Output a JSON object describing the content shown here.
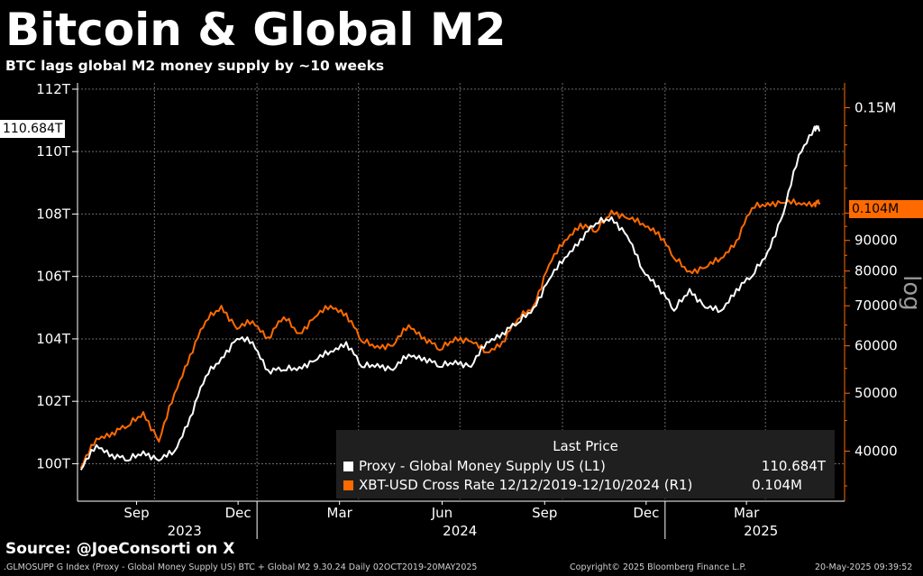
{
  "header": {
    "title": "Bitcoin & Global M2",
    "subtitle": "BTC lags global M2 money supply by ~10 weeks"
  },
  "source": "Source: @JoeConsorti on X",
  "footer": {
    "left": ".GLMOSUPP G Index (Proxy - Global Money Supply US) BTC + Global M2 9.30.24  Daily 02OCT2019-20MAY2025",
    "center": "Copyright© 2025 Bloomberg Finance L.P.",
    "right": "20-May-2025 09:39:52"
  },
  "legend": {
    "title": "Last Price",
    "series": [
      {
        "name": "Proxy - Global Money Supply US  (L1)",
        "value": "110.684T",
        "color": "#ffffff"
      },
      {
        "name": "XBT-USD Cross Rate 12/12/2019-12/10/2024  (R1)",
        "value": "0.104M",
        "color": "#ff6a00"
      }
    ]
  },
  "last_tags": {
    "left": "110.684T",
    "right": "0.104M"
  },
  "chart_data": {
    "type": "line",
    "log_scale_right": true,
    "right_axis_label": "log",
    "grid": true,
    "x_labels": [
      "Sep",
      "Dec",
      "Mar",
      "Jun",
      "Sep",
      "Dec",
      "Mar"
    ],
    "x_years": [
      "2023",
      "2024",
      "2025"
    ],
    "left_axis": {
      "ticks": [
        "100T",
        "102T",
        "104T",
        "106T",
        "108T",
        "110T",
        "112T"
      ],
      "ylim": [
        98.8,
        112.2
      ]
    },
    "right_axis": {
      "ticks": [
        "40000",
        "50000",
        "60000",
        "70000",
        "80000",
        "90000",
        "0.1M",
        "0.15M"
      ],
      "ylim": [
        33000,
        165000
      ]
    },
    "series": [
      {
        "name": "Proxy - Global Money Supply US",
        "axis": "left",
        "color": "#ffffff",
        "x": [
          "2023-07-27",
          "2023-08-10",
          "2023-08-24",
          "2023-09-07",
          "2023-09-21",
          "2023-10-05",
          "2023-10-19",
          "2023-11-02",
          "2023-11-16",
          "2023-11-30",
          "2023-12-14",
          "2023-12-28",
          "2024-01-11",
          "2024-01-25",
          "2024-02-08",
          "2024-02-22",
          "2024-03-07",
          "2024-03-21",
          "2024-04-04",
          "2024-04-18",
          "2024-05-02",
          "2024-05-16",
          "2024-05-30",
          "2024-06-13",
          "2024-06-27",
          "2024-07-11",
          "2024-07-25",
          "2024-08-08",
          "2024-08-22",
          "2024-09-05",
          "2024-09-19",
          "2024-10-03",
          "2024-10-17",
          "2024-10-31",
          "2024-11-14",
          "2024-11-28",
          "2024-12-12",
          "2024-12-26",
          "2025-01-09",
          "2025-01-23",
          "2025-02-06",
          "2025-02-20",
          "2025-03-06",
          "2025-03-20",
          "2025-04-03",
          "2025-04-17",
          "2025-05-01",
          "2025-05-15",
          "2025-05-20"
        ],
        "values": [
          99.8,
          100.6,
          100.3,
          100.1,
          100.4,
          100.1,
          100.4,
          101.5,
          102.8,
          103.4,
          104.0,
          103.9,
          103.0,
          103.0,
          103.1,
          103.3,
          103.6,
          103.9,
          103.1,
          103.2,
          103.0,
          103.5,
          103.4,
          103.1,
          103.3,
          103.1,
          103.9,
          104.2,
          104.5,
          105.0,
          105.9,
          106.6,
          107.2,
          107.7,
          107.9,
          107.3,
          106.2,
          105.7,
          104.9,
          105.6,
          105.0,
          104.9,
          105.6,
          106.0,
          106.8,
          108.0,
          109.9,
          110.8,
          110.684
        ]
      },
      {
        "name": "XBT-USD Cross Rate 12/12/2019-12/10/2024",
        "axis": "right",
        "color": "#ff6a00",
        "x": [
          "2023-07-27",
          "2023-08-10",
          "2023-08-24",
          "2023-09-07",
          "2023-09-21",
          "2023-10-05",
          "2023-10-19",
          "2023-11-02",
          "2023-11-16",
          "2023-11-30",
          "2023-12-14",
          "2023-12-28",
          "2024-01-11",
          "2024-01-25",
          "2024-02-08",
          "2024-02-22",
          "2024-03-07",
          "2024-03-21",
          "2024-04-04",
          "2024-04-18",
          "2024-05-02",
          "2024-05-16",
          "2024-05-30",
          "2024-06-13",
          "2024-06-27",
          "2024-07-11",
          "2024-07-25",
          "2024-08-08",
          "2024-08-22",
          "2024-09-05",
          "2024-09-19",
          "2024-10-03",
          "2024-10-17",
          "2024-10-31",
          "2024-11-14",
          "2024-11-28",
          "2024-12-12",
          "2024-12-26",
          "2025-01-09",
          "2025-01-23",
          "2025-02-06",
          "2025-02-20",
          "2025-03-06",
          "2025-03-20",
          "2025-04-03",
          "2025-04-17",
          "2025-05-01",
          "2025-05-15",
          "2025-05-20"
        ],
        "values": [
          37500,
          42000,
          43000,
          44000,
          46500,
          41500,
          50000,
          58000,
          66000,
          70000,
          64000,
          66000,
          62000,
          67000,
          63000,
          67000,
          70000,
          68000,
          61000,
          60000,
          60000,
          65000,
          62000,
          59000,
          62000,
          61000,
          58500,
          61000,
          66500,
          70000,
          82000,
          90000,
          96000,
          93000,
          101000,
          98000,
          96000,
          93000,
          84000,
          80000,
          81000,
          84000,
          90000,
          102000,
          104000,
          104000,
          104000,
          104000,
          104000
        ]
      }
    ]
  }
}
